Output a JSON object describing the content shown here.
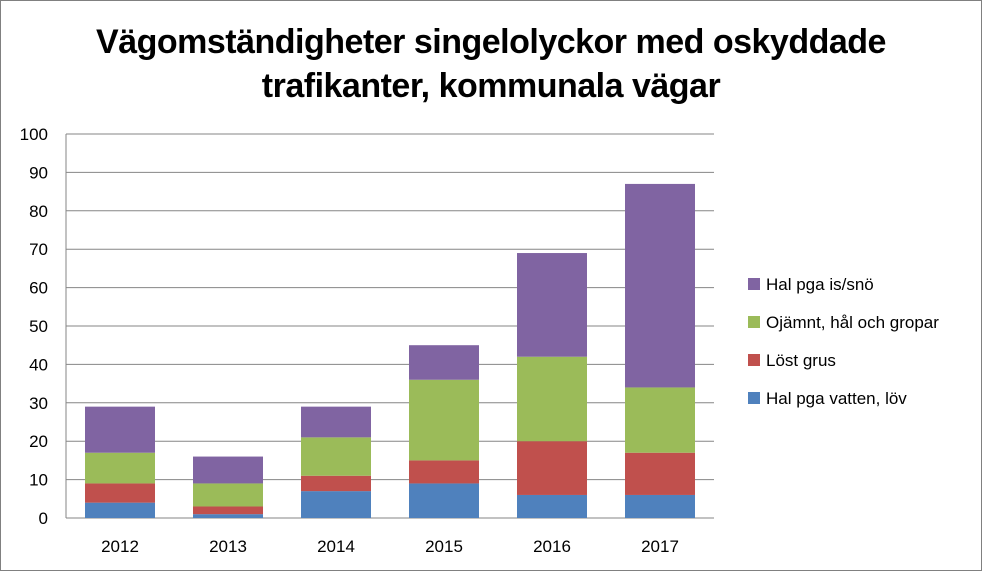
{
  "chart_data": {
    "type": "bar",
    "stacked": true,
    "title_lines": [
      "Vägomständigheter singelolyckor med oskyddade",
      "trafikanter, kommunala vägar"
    ],
    "categories": [
      "2012",
      "2013",
      "2014",
      "2015",
      "2016",
      "2017"
    ],
    "series": [
      {
        "name": "Hal pga vatten, löv",
        "color": "#4F81BD",
        "values": [
          4,
          1,
          7,
          9,
          6,
          6
        ]
      },
      {
        "name": "Löst grus",
        "color": "#C0504D",
        "values": [
          5,
          2,
          4,
          6,
          14,
          11
        ]
      },
      {
        "name": "Ojämnt, hål och gropar",
        "color": "#9BBB59",
        "values": [
          8,
          6,
          10,
          21,
          22,
          17
        ]
      },
      {
        "name": "Hal pga is/snö",
        "color": "#8064A2",
        "values": [
          12,
          7,
          8,
          9,
          27,
          53
        ]
      }
    ],
    "ylim": [
      0,
      100
    ],
    "yticks": [
      "0",
      "10",
      "20",
      "30",
      "40",
      "50",
      "60",
      "70",
      "80",
      "90",
      "100"
    ],
    "grid": true,
    "legend_position": "right"
  }
}
